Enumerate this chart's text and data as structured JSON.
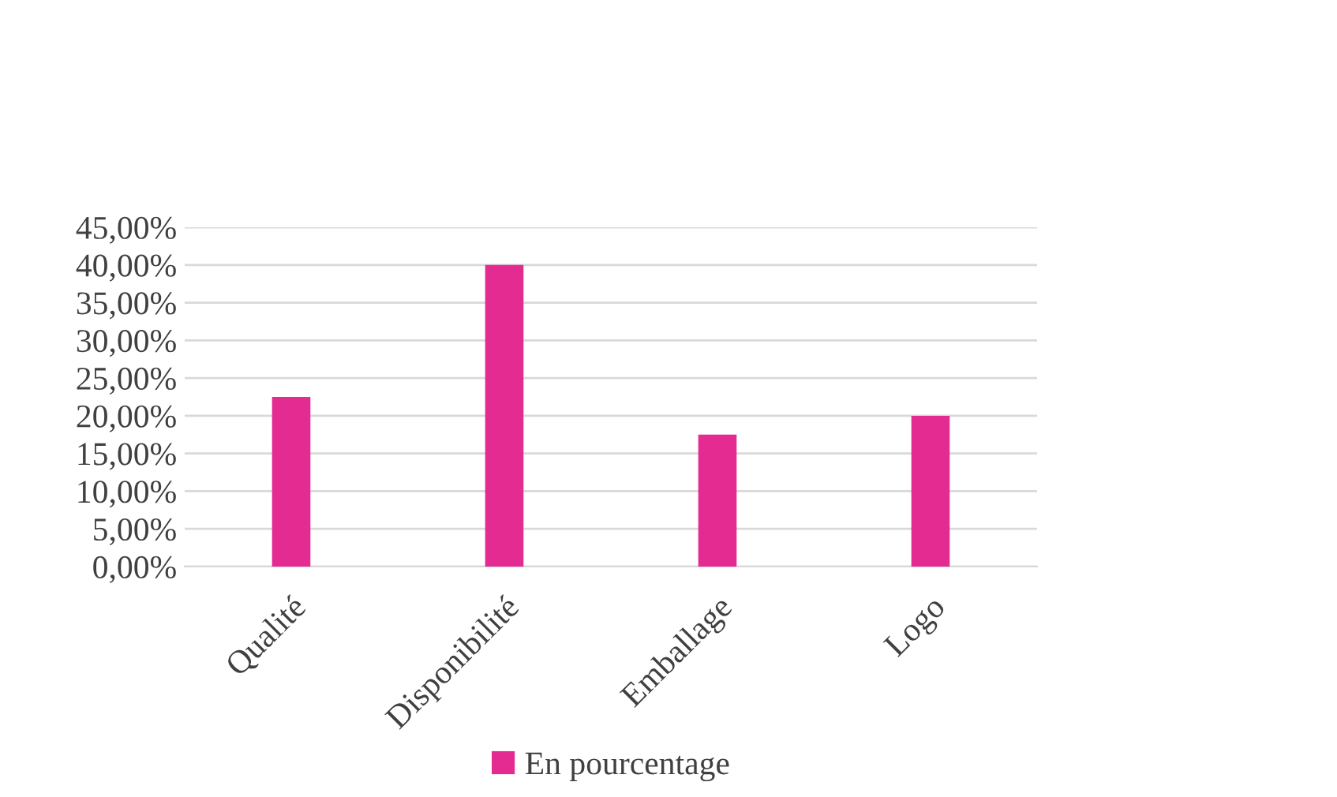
{
  "chart_data": {
    "type": "bar",
    "categories": [
      "Qualité",
      "Disponibilité",
      "Emballage",
      "Logo"
    ],
    "series": [
      {
        "name": "En pourcentage",
        "color": "#e32b92",
        "values": [
          22.5,
          40,
          17.5,
          20
        ]
      }
    ],
    "ylim": [
      0,
      45
    ],
    "yticks": [
      {
        "value": 0,
        "label": "0,00%"
      },
      {
        "value": 5,
        "label": "5,00%"
      },
      {
        "value": 10,
        "label": "10,00%"
      },
      {
        "value": 15,
        "label": "15,00%"
      },
      {
        "value": 20,
        "label": "20,00%"
      },
      {
        "value": 25,
        "label": "25,00%"
      },
      {
        "value": 30,
        "label": "30,00%"
      },
      {
        "value": 35,
        "label": "35,00%"
      },
      {
        "value": 40,
        "label": "40,00%"
      },
      {
        "value": 45,
        "label": "45,00%"
      }
    ],
    "grid": "y",
    "legend": "bottom"
  }
}
